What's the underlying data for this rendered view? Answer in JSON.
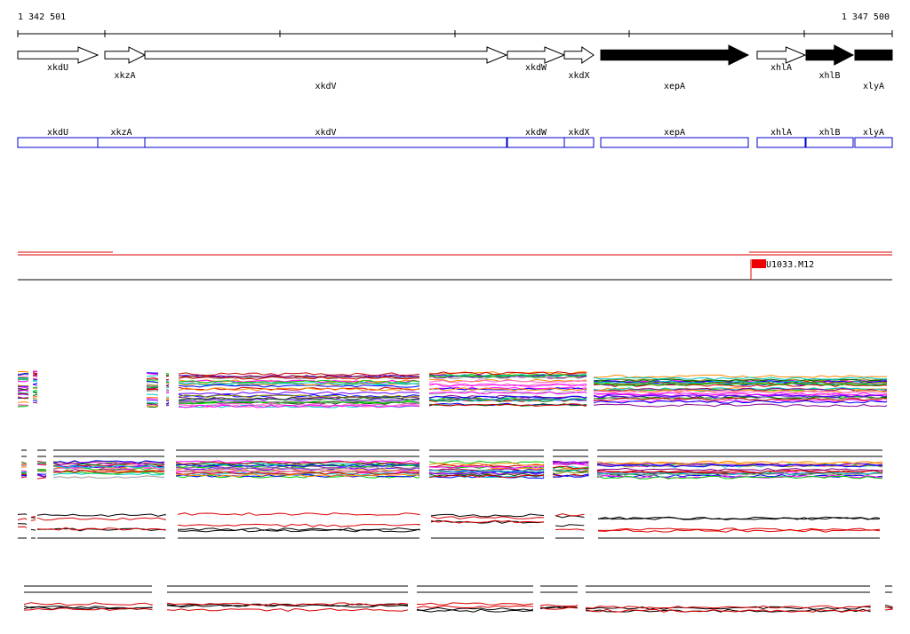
{
  "ruler": {
    "start": "1 342 501",
    "end": "1 347 500"
  },
  "genes": [
    "xkdU",
    "xkzA",
    "xkdV",
    "xkdW",
    "xkdX",
    "xepA",
    "xhlA",
    "xhlB",
    "xlyA"
  ],
  "features": [
    "xkdU",
    "xkzA",
    "xkdV",
    "xkdW",
    "xkdX",
    "xepA",
    "xhlA",
    "xhlB",
    "xlyA"
  ],
  "marker": "U1033.M12"
}
